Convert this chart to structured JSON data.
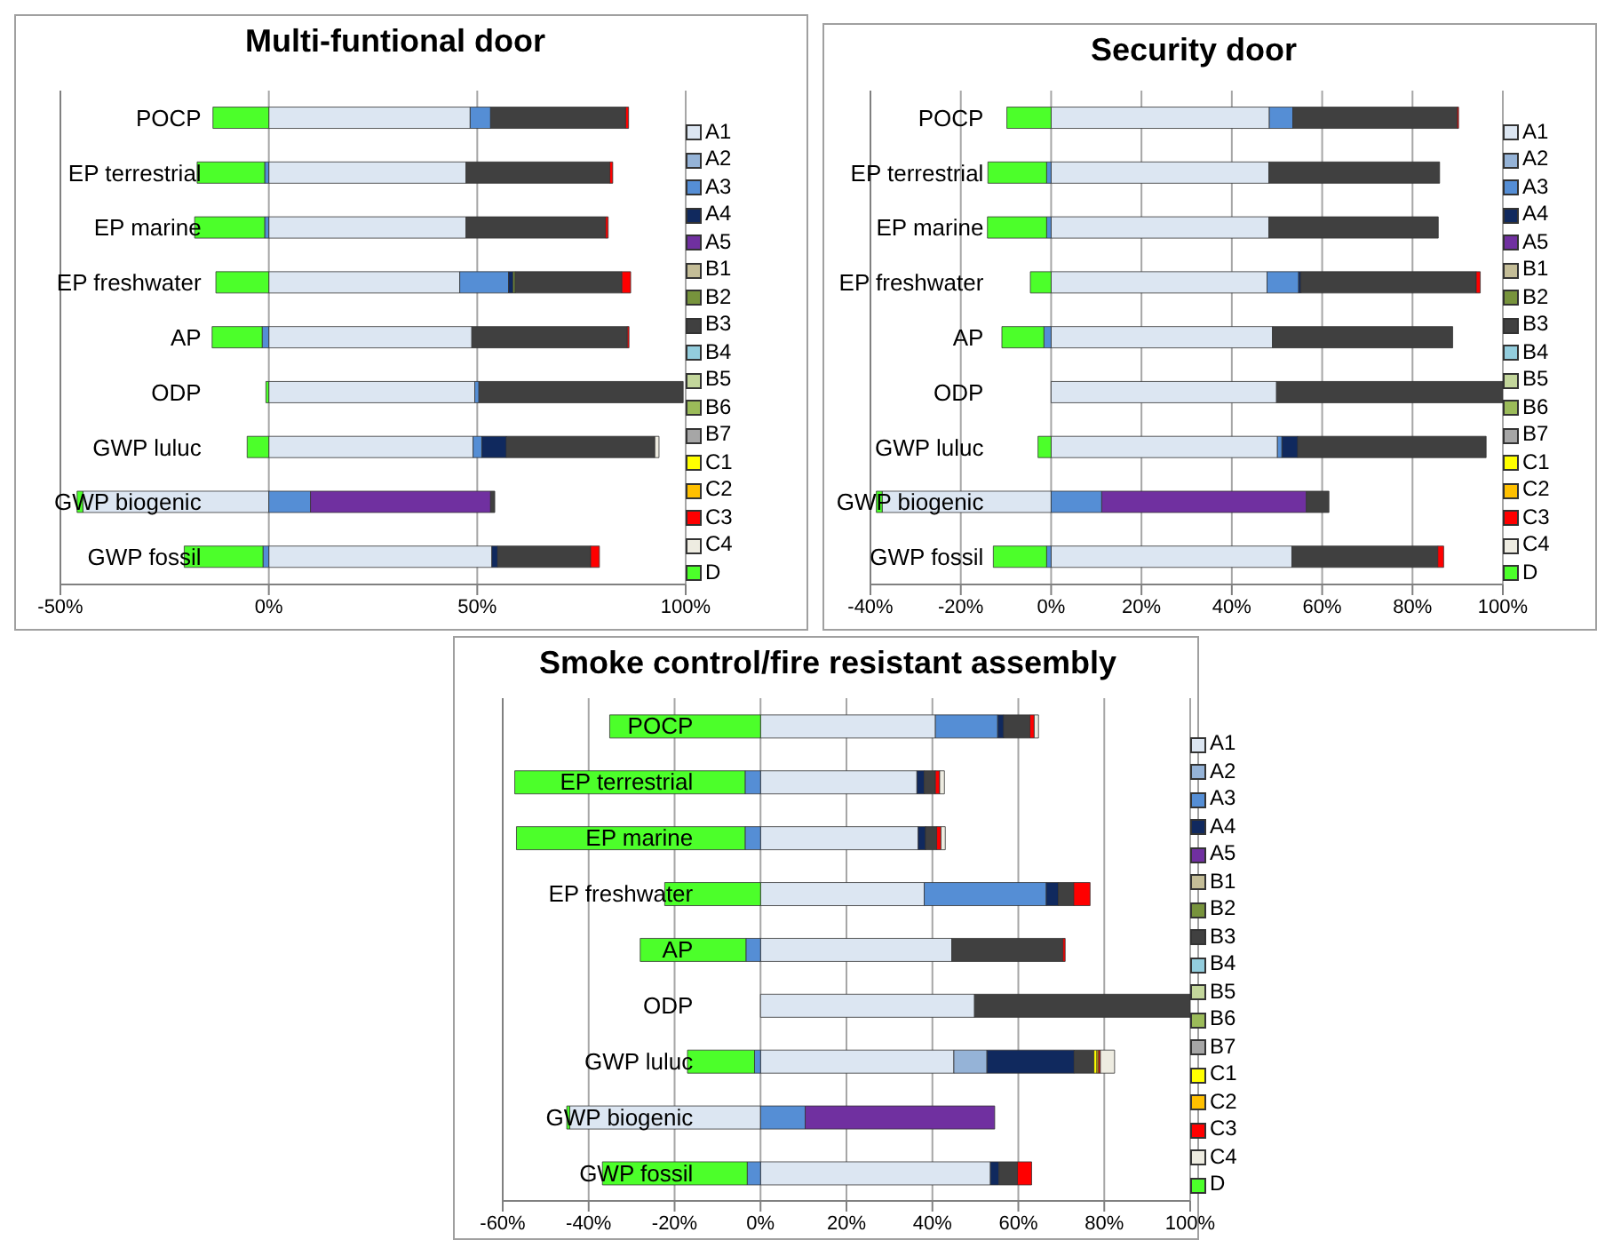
{
  "chart_data": [
    {
      "type": "bar",
      "orientation": "horizontal",
      "stacked": true,
      "title": "Multi-funtional door",
      "grid": "x",
      "legend": "right",
      "categories": [
        "POCP",
        "EP terrestrial",
        "EP marine",
        "EP freshwater",
        "AP",
        "ODP",
        "GWP luluc",
        "GWP biogenic",
        "GWP fossil"
      ],
      "xlim": [
        -50,
        100
      ],
      "xticks": [
        {
          "value": -50,
          "label": "-50%"
        },
        {
          "value": 0,
          "label": "0%"
        },
        {
          "value": 50,
          "label": "50%"
        },
        {
          "value": 100,
          "label": "100%"
        }
      ],
      "series": [
        {
          "name": "A1",
          "color": "#dce6f2",
          "values": [
            48.3,
            47.3,
            47.3,
            45.8,
            48.7,
            49.4,
            49,
            -44.6,
            53.5
          ]
        },
        {
          "name": "A2",
          "color": "#95b3d7",
          "values": [
            0,
            0,
            0,
            0,
            0,
            0,
            0,
            0,
            0
          ]
        },
        {
          "name": "A3",
          "color": "#558ed5",
          "values": [
            4.9,
            -1,
            -1,
            11.7,
            -1.6,
            1,
            2.1,
            10,
            -1.4
          ]
        },
        {
          "name": "A4",
          "color": "#10295e",
          "values": [
            0,
            0,
            0,
            1.1,
            0,
            0,
            5.9,
            0,
            1.4
          ]
        },
        {
          "name": "A5",
          "color": "#7030a0",
          "values": [
            0,
            0,
            0,
            0,
            0,
            0,
            0,
            43.2,
            0
          ]
        },
        {
          "name": "B1",
          "color": "#c4bd97",
          "values": [
            0,
            0,
            0,
            0,
            0,
            0,
            0,
            0,
            0
          ]
        },
        {
          "name": "B2",
          "color": "#77933c",
          "values": [
            0,
            0,
            0,
            0.5,
            0,
            0,
            0,
            0,
            0
          ]
        },
        {
          "name": "B3",
          "color": "#404040",
          "values": [
            32.4,
            34.5,
            33.5,
            25.6,
            37.3,
            49,
            35.6,
            1,
            22.3
          ]
        },
        {
          "name": "B4",
          "color": "#93cddd",
          "values": [
            0,
            0,
            0,
            0,
            0,
            0,
            0,
            0,
            0
          ]
        },
        {
          "name": "B5",
          "color": "#c3d69b",
          "values": [
            0,
            0,
            0,
            0,
            0,
            0,
            0,
            0,
            0
          ]
        },
        {
          "name": "B6",
          "color": "#9bbb59",
          "values": [
            0,
            0,
            0,
            0,
            0,
            0,
            0,
            0,
            0
          ]
        },
        {
          "name": "B7",
          "color": "#a6a6a6",
          "values": [
            0,
            0,
            0,
            0,
            0,
            0,
            0,
            0,
            0
          ]
        },
        {
          "name": "C1",
          "color": "#ffff00",
          "values": [
            0,
            0,
            0,
            0,
            0,
            0,
            0,
            0,
            0
          ]
        },
        {
          "name": "C2",
          "color": "#ffc000",
          "values": [
            0,
            0,
            0,
            0,
            0,
            0,
            null,
            0,
            0
          ]
        },
        {
          "name": "C3",
          "color": "#ff0000",
          "values": [
            0.7,
            0.7,
            0.6,
            2.1,
            0.4,
            0,
            0,
            0,
            2.1
          ]
        },
        {
          "name": "C4",
          "color": "#eeece1",
          "values": [
            0,
            0,
            0,
            0,
            0,
            0,
            1,
            0,
            0
          ]
        },
        {
          "name": "D",
          "color": "#4cff2a",
          "values": [
            -13.4,
            -16.2,
            -16.8,
            -12.7,
            -12,
            -0.7,
            -5.2,
            -1.4,
            -18.9
          ]
        }
      ]
    },
    {
      "type": "bar",
      "orientation": "horizontal",
      "stacked": true,
      "title": "Security door",
      "grid": "x",
      "legend": "right",
      "categories": [
        "POCP",
        "EP terrestrial",
        "EP marine",
        "EP freshwater",
        "AP",
        "ODP",
        "GWP luluc",
        "GWP biogenic",
        "GWP fossil"
      ],
      "xlim": [
        -40,
        100
      ],
      "xticks": [
        {
          "value": -40,
          "label": "-40%"
        },
        {
          "value": -20,
          "label": "-20%"
        },
        {
          "value": 0,
          "label": "0%"
        },
        {
          "value": 20,
          "label": "20%"
        },
        {
          "value": 40,
          "label": "40%"
        },
        {
          "value": 60,
          "label": "60%"
        },
        {
          "value": 80,
          "label": "80%"
        },
        {
          "value": 100,
          "label": "100%"
        }
      ],
      "series": [
        {
          "name": "A1",
          "color": "#dce6f2",
          "values": [
            48.3,
            48.2,
            48.2,
            47.8,
            49,
            49.9,
            50.1,
            -37.4,
            53.3
          ]
        },
        {
          "name": "A2",
          "color": "#95b3d7",
          "values": [
            0,
            0,
            0,
            0,
            0,
            0,
            0,
            0,
            0
          ]
        },
        {
          "name": "A3",
          "color": "#558ed5",
          "values": [
            5.2,
            -1,
            -1,
            7,
            -1.6,
            0,
            1,
            11.2,
            -1
          ]
        },
        {
          "name": "A4",
          "color": "#10295e",
          "values": [
            0,
            0,
            0,
            0.5,
            0,
            0,
            3.5,
            0,
            0
          ]
        },
        {
          "name": "A5",
          "color": "#7030a0",
          "values": [
            0,
            0,
            0,
            0,
            0,
            0,
            0,
            45.3,
            0
          ]
        },
        {
          "name": "B1",
          "color": "#c4bd97",
          "values": [
            0,
            0,
            0,
            0,
            0,
            0,
            0,
            0,
            0
          ]
        },
        {
          "name": "B2",
          "color": "#77933c",
          "values": [
            0,
            0,
            0,
            0,
            0,
            0,
            0,
            0,
            0
          ]
        },
        {
          "name": "B3",
          "color": "#404040",
          "values": [
            36.4,
            37.8,
            37.5,
            38.8,
            39.9,
            50.1,
            41.7,
            5,
            32.3
          ]
        },
        {
          "name": "B4",
          "color": "#93cddd",
          "values": [
            0,
            0,
            0,
            0,
            0,
            0,
            0,
            0,
            0
          ]
        },
        {
          "name": "B5",
          "color": "#c3d69b",
          "values": [
            0,
            0,
            0,
            0,
            0,
            0,
            0,
            0,
            0
          ]
        },
        {
          "name": "B6",
          "color": "#9bbb59",
          "values": [
            0,
            0,
            0,
            0,
            0,
            0,
            0,
            0,
            0
          ]
        },
        {
          "name": "B7",
          "color": "#a6a6a6",
          "values": [
            0,
            0,
            0,
            0,
            0,
            0,
            0,
            0,
            0
          ]
        },
        {
          "name": "C1",
          "color": "#ffff00",
          "values": [
            0,
            0,
            0,
            0,
            0,
            0,
            0,
            0,
            0
          ]
        },
        {
          "name": "C2",
          "color": "#ffc000",
          "values": [
            0,
            0,
            0,
            0,
            0,
            0,
            0,
            0,
            0
          ]
        },
        {
          "name": "C3",
          "color": "#ff0000",
          "values": [
            0.3,
            0,
            0,
            0.9,
            0,
            0,
            0,
            0,
            1.3
          ]
        },
        {
          "name": "C4",
          "color": "#eeece1",
          "values": [
            0,
            0,
            0,
            0,
            0,
            0,
            0,
            0,
            0
          ]
        },
        {
          "name": "D",
          "color": "#4cff2a",
          "values": [
            -9.8,
            -13,
            -13.1,
            -4.6,
            -9.3,
            0,
            -2.9,
            -1.3,
            -11.8
          ]
        }
      ]
    },
    {
      "type": "bar",
      "orientation": "horizontal",
      "stacked": true,
      "title": "Smoke control/fire resistant assembly",
      "grid": "x",
      "legend": "right",
      "categories": [
        "POCP",
        "EP terrestrial",
        "EP marine",
        "EP freshwater",
        "AP",
        "ODP",
        "GWP luluc",
        "GWP biogenic",
        "GWP fossil"
      ],
      "xlim": [
        -60,
        100
      ],
      "xticks": [
        {
          "value": -60,
          "label": "-60%"
        },
        {
          "value": -40,
          "label": "-40%"
        },
        {
          "value": -20,
          "label": "-20%"
        },
        {
          "value": 0,
          "label": "0%"
        },
        {
          "value": 20,
          "label": "20%"
        },
        {
          "value": 40,
          "label": "40%"
        },
        {
          "value": 60,
          "label": "60%"
        },
        {
          "value": 80,
          "label": "80%"
        },
        {
          "value": 100,
          "label": "100%"
        }
      ],
      "series": [
        {
          "name": "A1",
          "color": "#dce6f2",
          "values": [
            40.7,
            36.4,
            36.7,
            38.1,
            44.5,
            49.8,
            45,
            -44.4,
            53.5
          ]
        },
        {
          "name": "A2",
          "color": "#95b3d7",
          "values": [
            0,
            0,
            0,
            0,
            0,
            0,
            7.7,
            0,
            0
          ]
        },
        {
          "name": "A3",
          "color": "#558ed5",
          "values": [
            14.5,
            -3.6,
            -3.6,
            28.4,
            -3.4,
            0,
            -1.4,
            10.4,
            -3.1
          ]
        },
        {
          "name": "A4",
          "color": "#10295e",
          "values": [
            1.4,
            1.7,
            1.7,
            2.8,
            0,
            0,
            20.3,
            0,
            2
          ]
        },
        {
          "name": "A5",
          "color": "#7030a0",
          "values": [
            0,
            0,
            0,
            0,
            0,
            0,
            0,
            44.1,
            0
          ]
        },
        {
          "name": "B1",
          "color": "#c4bd97",
          "values": [
            0,
            0,
            0,
            0,
            0,
            0,
            0,
            0,
            0
          ]
        },
        {
          "name": "B2",
          "color": "#77933c",
          "values": [
            0,
            0,
            0,
            null,
            0,
            0,
            0,
            0,
            0
          ]
        },
        {
          "name": "B3",
          "color": "#404040",
          "values": [
            6.1,
            2.6,
            2.6,
            3.6,
            25.9,
            50.2,
            4.6,
            0,
            4.3
          ]
        },
        {
          "name": "B4",
          "color": "#93cddd",
          "values": [
            0,
            0,
            0,
            0,
            0,
            0,
            0,
            0,
            0
          ]
        },
        {
          "name": "B5",
          "color": "#c3d69b",
          "values": [
            0,
            0,
            0,
            0,
            0,
            0,
            0,
            0,
            0
          ]
        },
        {
          "name": "B6",
          "color": "#9bbb59",
          "values": [
            0,
            0,
            0,
            0,
            0,
            0,
            0,
            0,
            0
          ]
        },
        {
          "name": "B7",
          "color": "#a6a6a6",
          "values": [
            0,
            0,
            0,
            0,
            0,
            0,
            0,
            0,
            0
          ]
        },
        {
          "name": "C1",
          "color": "#ffff00",
          "values": [
            0,
            0,
            0,
            0,
            0,
            0,
            0.7,
            0,
            0
          ]
        },
        {
          "name": "C2",
          "color": "#ffc000",
          "values": [
            0,
            0,
            0,
            0,
            0,
            0,
            0.4,
            0,
            0
          ]
        },
        {
          "name": "C3",
          "color": "#ff0000",
          "values": [
            1,
            1,
            1,
            3.8,
            0.5,
            0,
            0.4,
            0,
            3.3
          ]
        },
        {
          "name": "C4",
          "color": "#eeece1",
          "values": [
            1,
            1.1,
            1,
            0,
            0,
            0,
            3.3,
            0,
            0
          ]
        },
        {
          "name": "D",
          "color": "#4cff2a",
          "values": [
            -35.1,
            -53.6,
            -53.2,
            -22.3,
            -24.6,
            0,
            -15.6,
            -0.7,
            -33.7
          ]
        }
      ]
    }
  ]
}
